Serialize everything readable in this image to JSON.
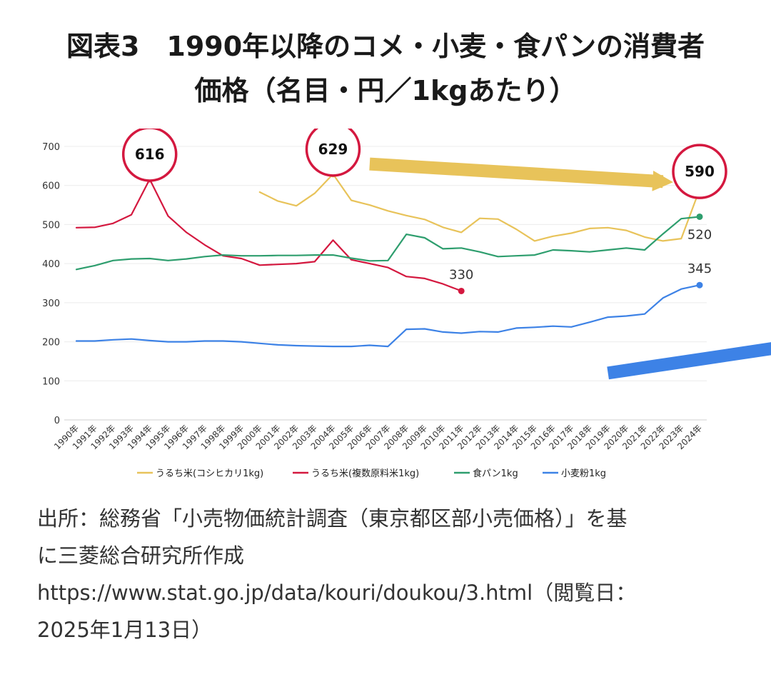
{
  "header": {
    "title_line1": "図表3　1990年以降のコメ・小麦・食パンの消費者",
    "title_line2": "価格（名目・円／1kgあたり）"
  },
  "chart_data": {
    "type": "line",
    "title": "図表3　1990年以降のコメ・小麦・食パンの消費者価格（名目・円／1kgあたり）",
    "x": [
      "1990年",
      "1991年",
      "1992年",
      "1993年",
      "1994年",
      "1995年",
      "1996年",
      "1997年",
      "1998年",
      "1999年",
      "2000年",
      "2001年",
      "2002年",
      "2003年",
      "2004年",
      "2005年",
      "2006年",
      "2007年",
      "2008年",
      "2009年",
      "2010年",
      "2011年",
      "2012年",
      "2013年",
      "2014年",
      "2015年",
      "2016年",
      "2017年",
      "2018年",
      "2019年",
      "2020年",
      "2021年",
      "2022年",
      "2023年",
      "2024年"
    ],
    "ylim": [
      0,
      700
    ],
    "yticks": [
      0,
      100,
      200,
      300,
      400,
      500,
      600,
      700
    ],
    "grid": true,
    "legend_position": "bottom",
    "series": [
      {
        "name": "うるち米(コシヒカリ1kg)",
        "color": "#e8c35a",
        "values": [
          null,
          null,
          null,
          null,
          null,
          null,
          null,
          null,
          null,
          null,
          583,
          560,
          548,
          580,
          629,
          562,
          550,
          535,
          523,
          513,
          493,
          480,
          516,
          514,
          488,
          458,
          470,
          478,
          490,
          492,
          485,
          468,
          458,
          464,
          590
        ]
      },
      {
        "name": "うるち米(複数原料米1kg)",
        "color": "#d4183f",
        "values": [
          492,
          493,
          503,
          525,
          616,
          522,
          480,
          448,
          420,
          413,
          396,
          398,
          400,
          405,
          460,
          410,
          400,
          390,
          367,
          362,
          348,
          330,
          null,
          null,
          null,
          null,
          null,
          null,
          null,
          null,
          null,
          null,
          null,
          null,
          null
        ]
      },
      {
        "name": "食パン1kg",
        "color": "#2e9e6e",
        "values": [
          385,
          395,
          408,
          412,
          413,
          408,
          412,
          418,
          422,
          420,
          420,
          421,
          421,
          422,
          422,
          414,
          407,
          408,
          475,
          466,
          438,
          440,
          430,
          418,
          420,
          422,
          435,
          433,
          430,
          435,
          440,
          435,
          476,
          515,
          520
        ]
      },
      {
        "name": "小麦粉1kg",
        "color": "#3d82e6",
        "values": [
          202,
          202,
          205,
          207,
          203,
          200,
          200,
          202,
          202,
          200,
          196,
          192,
          190,
          189,
          188,
          188,
          191,
          188,
          232,
          233,
          225,
          222,
          226,
          225,
          235,
          237,
          240,
          238,
          250,
          263,
          266,
          271,
          312,
          335,
          345
        ]
      }
    ],
    "annotations": [
      {
        "text": "616",
        "series": 1,
        "x": "1994年",
        "callout": true
      },
      {
        "text": "629",
        "series": 0,
        "x": "2004年",
        "callout": true
      },
      {
        "text": "590",
        "series": 0,
        "x": "2024年",
        "callout": true
      },
      {
        "text": "330",
        "series": 1,
        "x": "2011年",
        "callout": false
      },
      {
        "text": "520",
        "series": 2,
        "x": "2024年",
        "callout": false
      },
      {
        "text": "345",
        "series": 3,
        "x": "2024年",
        "callout": false
      }
    ],
    "arrows": [
      {
        "name": "yellow-trend-arrow",
        "color": "#e8c35a",
        "from": [
          "2006年",
          655
        ],
        "to": [
          "2022年",
          610
        ]
      },
      {
        "name": "blue-trend-arrow",
        "color": "#3d82e6",
        "from": [
          "2019年",
          120
        ],
        "to": [
          "2034年",
          225
        ]
      }
    ]
  },
  "source": {
    "line1": "出所：総務省「小売物価統計調査（東京都区部小売価格）」を基",
    "line2": "に三菱総合研究所作成",
    "line3": "https://www.stat.go.jp/data/kouri/doukou/3.html（閲覧日：",
    "line4": "2025年1月13日）"
  }
}
